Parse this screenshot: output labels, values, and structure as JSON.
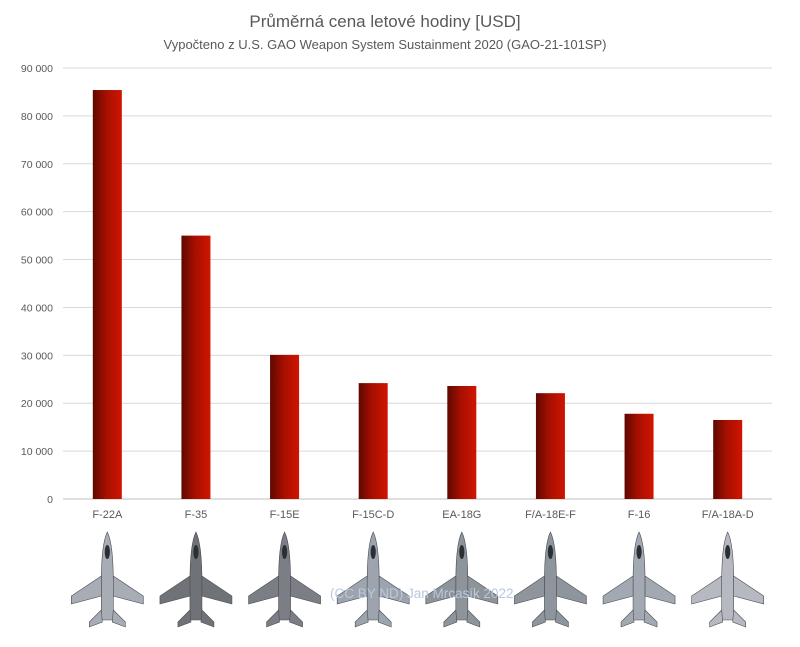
{
  "chart_data": {
    "type": "bar",
    "title": "Průměrná cena letové hodiny [USD]",
    "subtitle": "Vypočteno z U.S. GAO Weapon System Sustainment 2020  (GAO-21-101SP)",
    "categories": [
      "F-22A",
      "F-35",
      "F-15E",
      "F-15C-D",
      "EA-18G",
      "F/A-18E-F",
      "F-16",
      "F/A-18A-D"
    ],
    "values": [
      85400,
      55000,
      30100,
      24200,
      23600,
      22100,
      17800,
      16500
    ],
    "ylim": [
      0,
      90000
    ],
    "yticks": [
      0,
      10000,
      20000,
      30000,
      40000,
      50000,
      60000,
      70000,
      80000,
      90000
    ],
    "ytick_labels": [
      "0",
      "10 000",
      "20 000",
      "30 000",
      "40 000",
      "50 000",
      "60 000",
      "70 000",
      "80 000",
      "90 000"
    ],
    "grid": true,
    "bar_color": "#a50f00",
    "bar_dark": "#5e0800",
    "bar_light": "#d01500",
    "legend": false
  },
  "aircraft_icons": [
    {
      "name": "F-22A",
      "icon": "fighter-jet-icon",
      "color": "#a8acb4"
    },
    {
      "name": "F-35",
      "icon": "fighter-jet-icon",
      "color": "#6f7377"
    },
    {
      "name": "F-15E",
      "icon": "fighter-jet-icon",
      "color": "#7b7f85"
    },
    {
      "name": "F-15C-D",
      "icon": "fighter-jet-icon",
      "color": "#9da4ae"
    },
    {
      "name": "EA-18G",
      "icon": "fighter-jet-icon",
      "color": "#8d949a"
    },
    {
      "name": "F/A-18E-F",
      "icon": "fighter-jet-icon",
      "color": "#8f959c"
    },
    {
      "name": "F-16",
      "icon": "fighter-jet-icon",
      "color": "#a3a9b3"
    },
    {
      "name": "F/A-18A-D",
      "icon": "fighter-jet-icon",
      "color": "#b6bac0"
    }
  ],
  "watermark": "(CC BY ND) Jan Mrcasík 2022"
}
